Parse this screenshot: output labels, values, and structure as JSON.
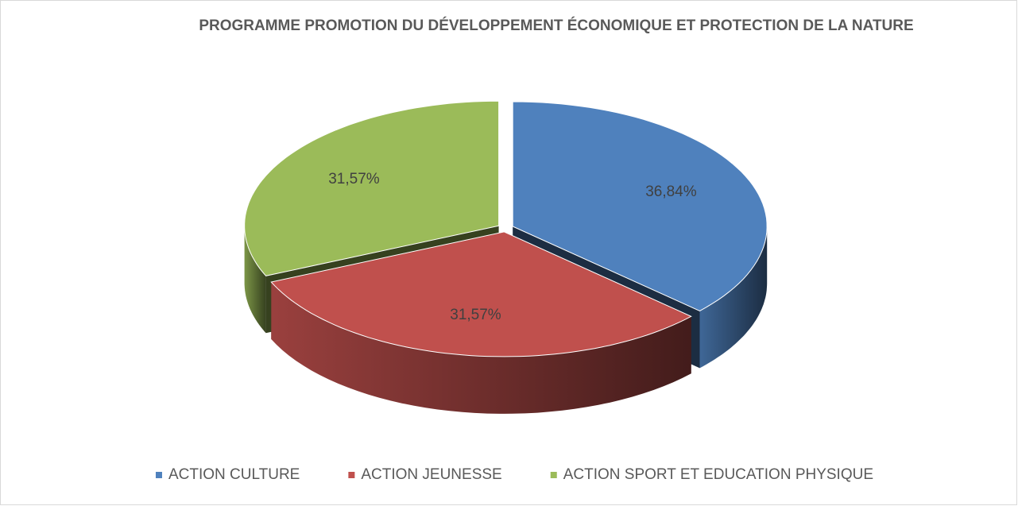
{
  "chart_data": {
    "type": "pie3d",
    "title": "PROGRAMME PROMOTION DU DÉVELOPPEMENT ÉCONOMIQUE ET PROTECTION DE LA NATURE",
    "categories": [
      "ACTION CULTURE",
      "ACTION JEUNESSE",
      "ACTION SPORT ET EDUCATION PHYSIQUE"
    ],
    "values": [
      36.84,
      31.57,
      31.57
    ],
    "value_labels": [
      "36,84%",
      "31,57%",
      "31,57%"
    ],
    "colors": [
      "#4f81bd",
      "#c0504d",
      "#9bbb59"
    ],
    "legend": "bottom"
  }
}
